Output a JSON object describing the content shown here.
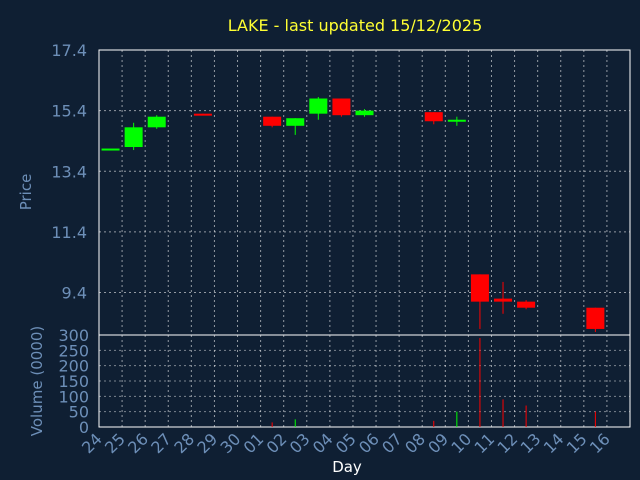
{
  "chart_data": {
    "type": "candlestick",
    "title": "LAKE - last updated 15/12/2025",
    "colors": {
      "background": "#0f1f33",
      "title": "#ffff33",
      "axis_text": "#6d8fb8",
      "grid": "#ffffff",
      "up": "#00ff00",
      "down": "#ff0000"
    },
    "grid": true,
    "x_label": "Day",
    "x_ticks": [
      "24",
      "25",
      "26",
      "27",
      "28",
      "29",
      "30",
      "01",
      "02",
      "03",
      "04",
      "05",
      "06",
      "07",
      "08",
      "09",
      "10",
      "11",
      "12",
      "13",
      "14",
      "15",
      "16"
    ],
    "price_panel": {
      "y_label": "Price",
      "y_ticks": [
        9.4,
        11.4,
        13.4,
        15.4,
        17.4
      ],
      "ylim": [
        8.0,
        17.4
      ],
      "candles": [
        {
          "day": "24",
          "open": 14.15,
          "high": 14.15,
          "low": 14.15,
          "close": 14.15
        },
        {
          "day": "25",
          "open": 14.2,
          "high": 15.0,
          "low": 14.1,
          "close": 14.85
        },
        {
          "day": "26",
          "open": 14.85,
          "high": 15.25,
          "low": 14.8,
          "close": 15.2
        },
        {
          "day": "28",
          "open": 15.3,
          "high": 15.3,
          "low": 15.25,
          "close": 15.25
        },
        {
          "day": "01",
          "open": 15.2,
          "high": 15.2,
          "low": 14.85,
          "close": 14.9
        },
        {
          "day": "02",
          "open": 14.9,
          "high": 15.15,
          "low": 14.6,
          "close": 15.15
        },
        {
          "day": "03",
          "open": 15.3,
          "high": 15.85,
          "low": 15.1,
          "close": 15.8
        },
        {
          "day": "04",
          "open": 15.8,
          "high": 15.8,
          "low": 15.2,
          "close": 15.25
        },
        {
          "day": "05",
          "open": 15.25,
          "high": 15.45,
          "low": 15.2,
          "close": 15.4
        },
        {
          "day": "08",
          "open": 15.35,
          "high": 15.35,
          "low": 14.95,
          "close": 15.05
        },
        {
          "day": "09",
          "open": 15.05,
          "high": 15.2,
          "low": 14.9,
          "close": 15.1
        },
        {
          "day": "10",
          "open": 10.0,
          "high": 10.0,
          "low": 8.2,
          "close": 9.1
        },
        {
          "day": "11",
          "open": 9.2,
          "high": 9.75,
          "low": 8.7,
          "close": 9.1
        },
        {
          "day": "12",
          "open": 9.1,
          "high": 9.15,
          "low": 8.85,
          "close": 8.9
        },
        {
          "day": "15",
          "open": 8.9,
          "high": 8.9,
          "low": 8.1,
          "close": 8.2
        }
      ]
    },
    "volume_panel": {
      "y_label": "Volume (0000)",
      "y_ticks": [
        0,
        50,
        100,
        150,
        200,
        250,
        300
      ],
      "ylim": [
        0,
        300
      ],
      "bars": [
        {
          "day": "01",
          "value": 15,
          "color": "red"
        },
        {
          "day": "02",
          "value": 25,
          "color": "green"
        },
        {
          "day": "08",
          "value": 20,
          "color": "red"
        },
        {
          "day": "09",
          "value": 50,
          "color": "green"
        },
        {
          "day": "10",
          "value": 290,
          "color": "red"
        },
        {
          "day": "11",
          "value": 90,
          "color": "red"
        },
        {
          "day": "12",
          "value": 70,
          "color": "red"
        },
        {
          "day": "15",
          "value": 50,
          "color": "red"
        }
      ]
    }
  }
}
